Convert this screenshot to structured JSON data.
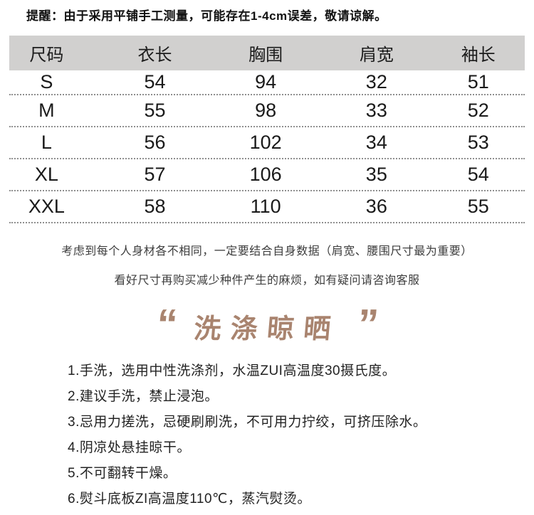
{
  "reminder": "提醒：由于采用平铺手工测量，可能存在1-4cm误差，敬请谅解。",
  "size_table": {
    "headers": [
      "尺码",
      "衣长",
      "胸围",
      "肩宽",
      "袖长"
    ],
    "rows": [
      {
        "size": "S",
        "values": [
          "54",
          "94",
          "32",
          "51"
        ]
      },
      {
        "size": "M",
        "values": [
          "55",
          "98",
          "33",
          "52"
        ]
      },
      {
        "size": "L",
        "values": [
          "56",
          "102",
          "34",
          "53"
        ]
      },
      {
        "size": "XL",
        "values": [
          "57",
          "106",
          "35",
          "54"
        ]
      },
      {
        "size": "XXL",
        "values": [
          "58",
          "110",
          "36",
          "55"
        ]
      }
    ]
  },
  "notes": [
    "考虑到每个人身材各不相同，一定要结合自身数据（肩宽、腰围尺寸最为重要）",
    "看好尺寸再购买减少种件产生的麻烦，如有疑问请咨询客服"
  ],
  "care_section": {
    "open_quote": "“",
    "title": "洗涤晾晒",
    "close_quote": "”",
    "items": [
      "1.手洗，选用中性洗涤剂，水温ZUI高温度30摄氏度。",
      "2.建议手洗，禁止浸泡。",
      "3.忌用力搓洗，忌硬刷刷洗，不可用力拧绞，可挤压除水。",
      "4.阴凉处悬挂晾干。",
      "5.不可翻转干燥。",
      "6.熨斗底板ZI高温度110℃，蒸汽熨烫。"
    ]
  },
  "colors": {
    "accent": "#a9846f",
    "table_header_bg": "#d1d0cf",
    "dotted_line": "#8f8f8f",
    "text": "#1a1a1a"
  }
}
